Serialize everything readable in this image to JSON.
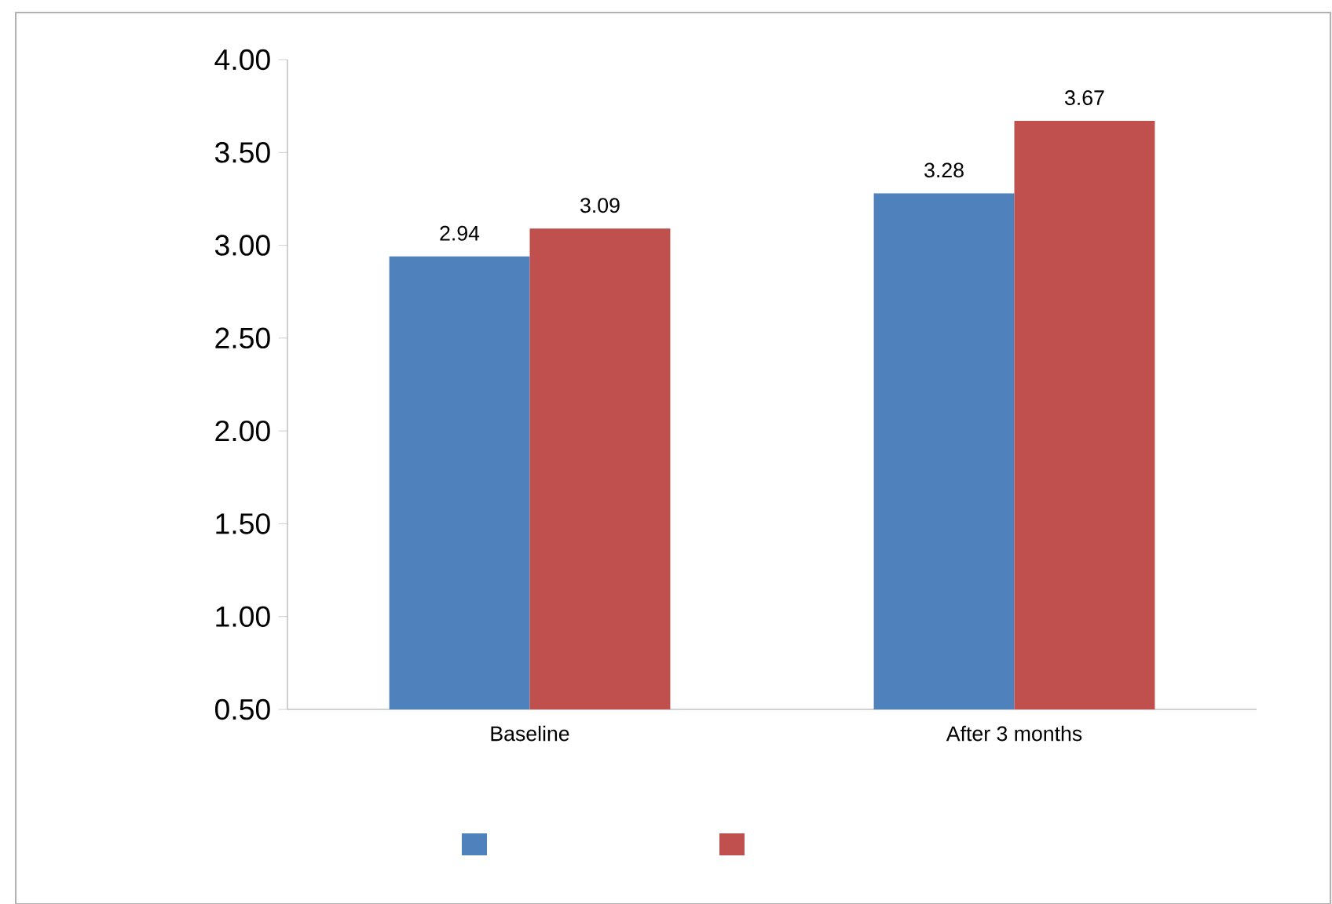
{
  "chart_data": {
    "type": "bar",
    "categories": [
      "Baseline",
      "After 3 months"
    ],
    "series": [
      {
        "color": "#4f81bd",
        "values": [
          2.94,
          3.28
        ]
      },
      {
        "color": "#c0504d",
        "values": [
          3.09,
          3.67
        ]
      }
    ],
    "ylim": [
      0.5,
      4.0
    ],
    "yticks": [
      {
        "value": 0.5,
        "label": "0.50"
      },
      {
        "value": 1.0,
        "label": "1.00"
      },
      {
        "value": 1.5,
        "label": "1.50"
      },
      {
        "value": 2.0,
        "label": "2.00"
      },
      {
        "value": 2.5,
        "label": "2.50"
      },
      {
        "value": 3.0,
        "label": "3.00"
      },
      {
        "value": 3.5,
        "label": "3.50"
      },
      {
        "value": 4.0,
        "label": "4.00"
      }
    ],
    "data_labels": true,
    "grid": false
  }
}
